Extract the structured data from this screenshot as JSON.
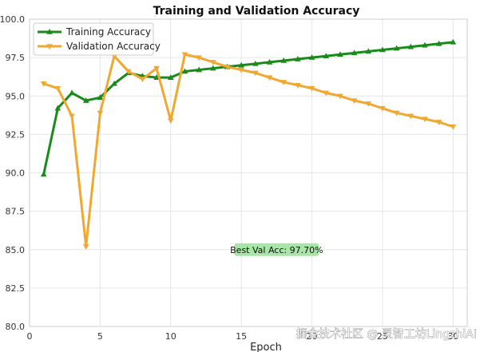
{
  "chart_data": {
    "type": "line",
    "title": "Training and Validation Accuracy",
    "xlabel": "Epoch",
    "ylabel": "",
    "xlim": [
      0,
      31
    ],
    "ylim": [
      80.0,
      100.0
    ],
    "x_ticks": [
      0,
      5,
      10,
      15,
      20,
      25,
      30
    ],
    "x_tick_labels": [
      "0",
      "5",
      "10",
      "15",
      "20",
      "25",
      "30"
    ],
    "y_ticks": [
      80.0,
      82.5,
      85.0,
      87.5,
      90.0,
      92.5,
      95.0,
      97.5,
      100.0
    ],
    "y_tick_labels": [
      "80.0",
      "82.5",
      "85.0",
      "87.5",
      "90.0",
      "92.5",
      "95.0",
      "97.5",
      "100.0"
    ],
    "grid": true,
    "legend_position": "top-left",
    "x": [
      1,
      2,
      3,
      4,
      5,
      6,
      7,
      8,
      9,
      10,
      11,
      12,
      13,
      14,
      15,
      16,
      17,
      18,
      19,
      20,
      21,
      22,
      23,
      24,
      25,
      26,
      27,
      28,
      29,
      30
    ],
    "series": [
      {
        "name": "Training Accuracy",
        "color": "#1a8a1a",
        "marker": "triangle-up",
        "values": [
          89.9,
          94.2,
          95.2,
          94.7,
          94.9,
          95.8,
          96.5,
          96.3,
          96.2,
          96.2,
          96.6,
          96.7,
          96.8,
          96.9,
          97.0,
          97.1,
          97.2,
          97.3,
          97.4,
          97.5,
          97.6,
          97.7,
          97.8,
          97.9,
          98.0,
          98.1,
          98.2,
          98.3,
          98.4,
          98.5
        ]
      },
      {
        "name": "Validation Accuracy",
        "color": "#f0a830",
        "marker": "triangle-down",
        "values": [
          95.8,
          95.5,
          93.7,
          85.2,
          93.9,
          97.6,
          96.6,
          96.1,
          96.8,
          93.4,
          97.7,
          97.5,
          97.2,
          96.9,
          96.7,
          96.5,
          96.2,
          95.9,
          95.7,
          95.5,
          95.2,
          95.0,
          94.7,
          94.5,
          94.2,
          93.9,
          93.7,
          93.5,
          93.3,
          93.0
        ]
      }
    ],
    "annotation": {
      "text": "Best Val Acc: 97.70%",
      "x": 17.5,
      "y": 85.0,
      "background": "#a8e6a8"
    },
    "watermark": "掘金技术社区 @ 灵智工坊LingzhiAI"
  }
}
